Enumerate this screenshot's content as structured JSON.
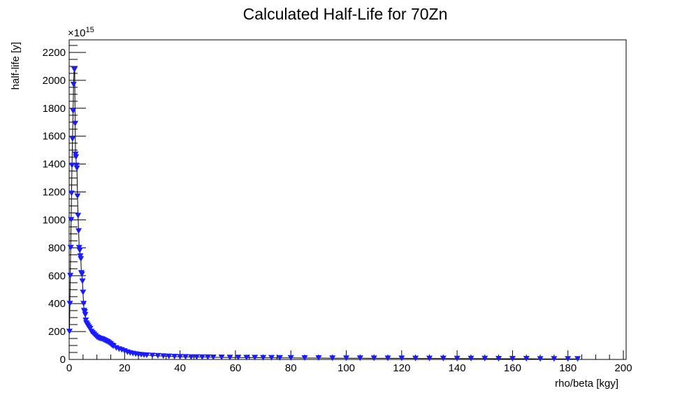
{
  "chart_data": {
    "type": "scatter",
    "title": "Calculated Half-Life for 70Zn",
    "xlabel": "rho/beta [kgy]",
    "ylabel": "half-life [y]",
    "y_multiplier_base": "×10",
    "y_multiplier_exp": "15",
    "xlim": [
      0,
      201
    ],
    "ylim": [
      0,
      2290
    ],
    "x_ticks": [
      0,
      20,
      40,
      60,
      80,
      100,
      120,
      140,
      160,
      180,
      200
    ],
    "y_ticks": [
      0,
      200,
      400,
      600,
      800,
      1000,
      1200,
      1400,
      1600,
      1800,
      2000,
      2200
    ],
    "marker_color": "#1a1aff",
    "line_color": "#000000",
    "grid": false,
    "series": [
      {
        "marker": "triangle-down",
        "x": [
          0.1,
          0.25,
          0.4,
          0.55,
          0.7,
          0.85,
          1.0,
          1.2,
          1.4,
          1.6,
          1.8,
          2.0,
          2.15,
          2.3,
          2.45,
          2.6,
          2.8,
          3.0,
          3.2,
          3.4,
          3.6,
          3.8,
          4.0,
          4.2,
          4.4,
          4.6,
          4.8,
          5.0,
          5.2,
          5.4,
          5.6,
          5.8,
          6.0,
          6.2,
          6.5,
          6.8,
          7.2,
          7.6,
          8.0,
          8.5,
          9.0,
          9.5,
          10.0,
          10.5,
          11.0,
          11.5,
          12.0,
          12.5,
          13.0,
          13.5,
          14.0,
          14.5,
          15.0,
          15.5,
          16.0,
          17.0,
          18.0,
          19.0,
          20.0,
          21.0,
          22.0,
          23.0,
          24.0,
          25.0,
          26.0,
          27.0,
          28.0,
          30.0,
          32.0,
          34.0,
          36.0,
          38.0,
          40.0,
          42.0,
          44.0,
          46.0,
          48.0,
          50.0,
          52.0,
          55.0,
          58.0,
          61.0,
          64.0,
          67.0,
          70.0,
          73.0,
          76.0,
          80.0,
          85.0,
          90.0,
          95.0,
          100.0,
          105.0,
          110.0,
          115.0,
          120.0,
          125.0,
          130.0,
          135.0,
          140.0,
          145.0,
          150.0,
          155.0,
          160.0,
          165.0,
          170.0,
          175.0,
          180.0,
          183.5
        ],
        "values": [
          200,
          400,
          600,
          800,
          1000,
          1190,
          1390,
          1580,
          1780,
          1970,
          2080,
          2080,
          1690,
          1470,
          1450,
          1390,
          1370,
          1170,
          1030,
          920,
          800,
          780,
          740,
          720,
          620,
          610,
          560,
          480,
          400,
          350,
          340,
          320,
          280,
          260,
          250,
          240,
          230,
          220,
          200,
          190,
          180,
          170,
          160,
          155,
          150,
          148,
          145,
          140,
          135,
          130,
          125,
          118,
          110,
          100,
          95,
          82,
          74,
          68,
          60,
          52,
          46,
          42,
          38,
          35,
          33,
          31,
          30,
          28,
          26,
          24,
          22,
          20,
          19,
          18,
          17,
          17,
          16,
          16,
          15,
          15,
          14,
          14,
          13,
          13,
          12,
          12,
          11,
          11,
          10,
          10,
          9,
          9,
          9,
          8,
          8,
          8,
          7,
          7,
          7,
          6,
          6,
          6,
          5,
          5,
          5,
          4,
          4,
          4,
          4
        ]
      }
    ]
  }
}
